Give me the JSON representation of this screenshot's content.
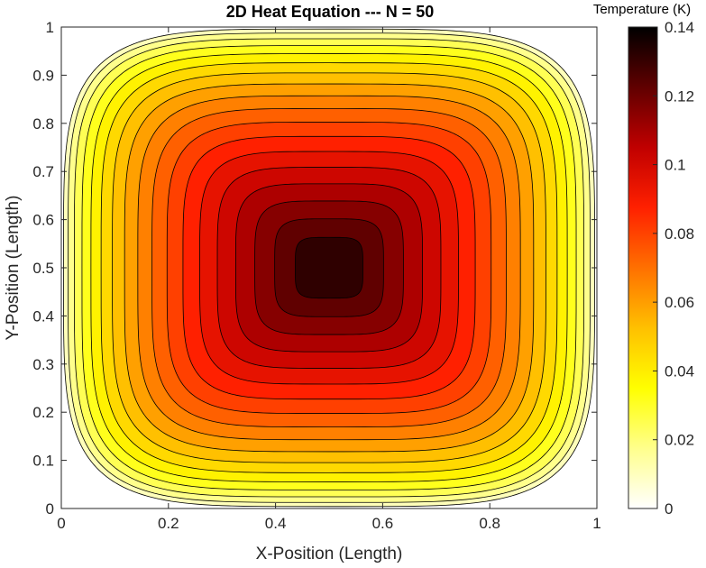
{
  "chart_data": {
    "type": "filled-contour",
    "title": "2D Heat Equation --- N = 50",
    "xlabel": "X-Position (Length)",
    "ylabel": "Y-Position (Length)",
    "xlim": [
      0,
      1
    ],
    "ylim": [
      0,
      1
    ],
    "xticks": [
      0,
      0.2,
      0.4,
      0.6,
      0.8,
      1
    ],
    "xtick_labels": [
      "0",
      "0.2",
      "0.4",
      "0.6",
      "0.8",
      "1"
    ],
    "yticks": [
      0,
      0.1,
      0.2,
      0.3,
      0.4,
      0.5,
      0.6,
      0.7,
      0.8,
      0.9,
      1
    ],
    "ytick_labels": [
      "0",
      "0.1",
      "0.2",
      "0.3",
      "0.4",
      "0.5",
      "0.6",
      "0.7",
      "0.8",
      "0.9",
      "1"
    ],
    "colormap": "hot (reversed)",
    "colorbar": {
      "title": "Temperature (K)",
      "range": [
        0,
        0.14
      ],
      "ticks": [
        0,
        0.02,
        0.04,
        0.06,
        0.08,
        0.1,
        0.12,
        0.14
      ],
      "tick_labels": [
        "0",
        "0.02",
        "0.04",
        "0.06",
        "0.08",
        "0.1",
        "0.12",
        "0.14"
      ]
    },
    "field": {
      "description": "steady-state temperature, zero at all four edges, maximum at the center (0.5, 0.5)",
      "peak_value": 0.137,
      "peak_location": [
        0.5,
        0.5
      ],
      "boundary_value": 0
    },
    "contour_levels": [
      0.007,
      0.014,
      0.021,
      0.028,
      0.035,
      0.042,
      0.049,
      0.056,
      0.063,
      0.07,
      0.077,
      0.084,
      0.091,
      0.098,
      0.105,
      0.112,
      0.119,
      0.126
    ]
  }
}
